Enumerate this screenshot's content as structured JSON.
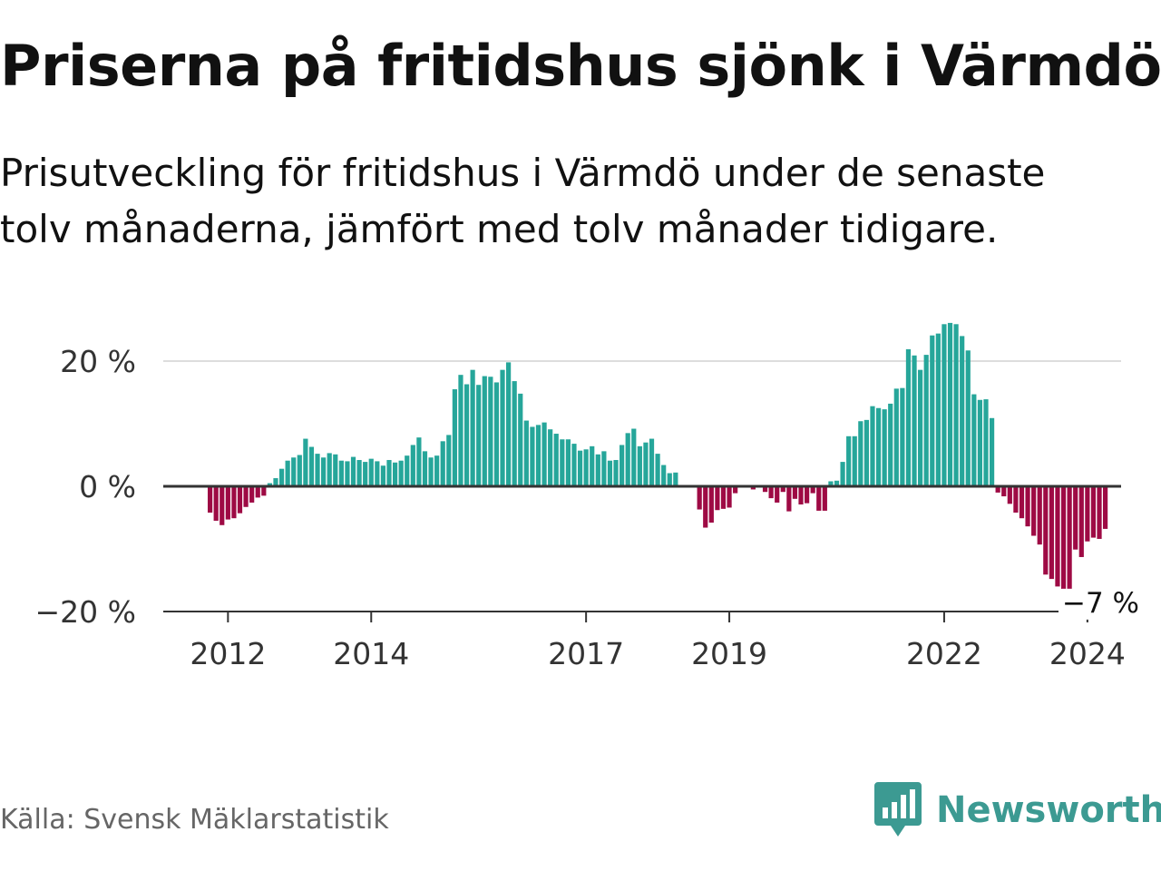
{
  "title": "Priserna på fritidshus sjönk i Värmdö",
  "subtitle": "Prisutveckling för fritidshus i Värmdö under de senaste tolv månaderna, jämfört med tolv månader tidigare.",
  "source": "Källa: Svensk Mäklarstatistik",
  "brand": "Newsworthy",
  "colors": {
    "positive": "#26a69a",
    "negative": "#9e0a44",
    "axis": "#333333",
    "grid": "#dddddd",
    "brand": "#3c9a92"
  },
  "chart_data": {
    "type": "bar",
    "start": "2011-10",
    "end_label": "−7 %",
    "ylim": [
      -20,
      20
    ],
    "yticks": [
      {
        "value": 20,
        "label": "20 %"
      },
      {
        "value": 0,
        "label": "0 %"
      },
      {
        "value": -20,
        "label": "−20 %"
      }
    ],
    "xticks": [
      {
        "index": 3,
        "label": "2012"
      },
      {
        "index": 27,
        "label": "2014"
      },
      {
        "index": 63,
        "label": "2017"
      },
      {
        "index": 87,
        "label": "2019"
      },
      {
        "index": 123,
        "label": "2022"
      },
      {
        "index": 147,
        "label": "2024"
      }
    ],
    "values": [
      -4.2,
      -5.5,
      -6.2,
      -5.3,
      -5.1,
      -4.3,
      -3.3,
      -2.6,
      -1.8,
      -1.5,
      0.5,
      1.3,
      2.8,
      4.1,
      4.6,
      5.0,
      7.6,
      6.3,
      5.2,
      4.6,
      5.3,
      5.1,
      4.1,
      4.0,
      4.7,
      4.2,
      3.9,
      4.4,
      4.0,
      3.3,
      4.2,
      3.8,
      4.1,
      4.9,
      6.6,
      7.8,
      5.6,
      4.6,
      4.9,
      7.2,
      8.2,
      15.5,
      17.8,
      16.3,
      18.6,
      16.2,
      17.6,
      17.5,
      16.6,
      18.6,
      19.8,
      16.8,
      14.8,
      10.5,
      9.5,
      9.8,
      10.2,
      9.1,
      8.4,
      7.5,
      7.5,
      6.8,
      5.7,
      5.9,
      6.4,
      5.1,
      5.6,
      4.1,
      4.2,
      6.6,
      8.5,
      9.2,
      6.4,
      7.0,
      7.6,
      5.2,
      3.4,
      2.1,
      2.2,
      0.0,
      0.0,
      0.0,
      -3.7,
      -6.6,
      -5.8,
      -3.8,
      -3.6,
      -3.4,
      -1.1,
      0.0,
      0.0,
      -0.5,
      0.0,
      -0.9,
      -1.9,
      -2.6,
      -0.9,
      -4.0,
      -2.0,
      -2.9,
      -2.7,
      -1.1,
      -3.9,
      -3.9,
      0.8,
      0.9,
      3.9,
      8.0,
      8.0,
      10.4,
      10.6,
      12.8,
      12.5,
      12.3,
      13.2,
      15.6,
      15.7,
      21.9,
      20.9,
      18.6,
      21.0,
      24.1,
      24.4,
      25.9,
      26.1,
      25.9,
      24.0,
      21.7,
      14.7,
      13.8,
      13.9,
      10.9,
      -1.0,
      -1.6,
      -2.8,
      -4.2,
      -5.1,
      -6.4,
      -7.9,
      -9.3,
      -14.1,
      -14.8,
      -16.0,
      -17.6,
      -17.6,
      -10.1,
      -11.3,
      -8.8,
      -8.2,
      -8.4,
      -6.8
    ]
  }
}
